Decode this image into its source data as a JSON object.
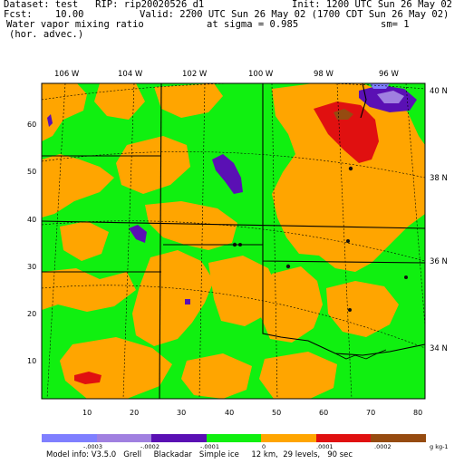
{
  "header": {
    "line1_left": "Dataset: test   RIP: rip20020526_d1",
    "line1_right": "Init: 1200 UTC Sun 26 May 02",
    "line2_left": "Fcst:    10.00",
    "line2_right": "Valid: 2200 UTC Sun 26 May 02 (1700 CDT Sun 26 May 02)",
    "line3_left": "Water vapor mixing ratio",
    "line3_mid": "at sigma = 0.985",
    "line3_right": "sm= 1",
    "line4_left": "(hor. advec.)"
  },
  "map": {
    "lon_labels": [
      "106 W",
      "104 W",
      "102 W",
      "100 W",
      "98 W",
      "96 W"
    ],
    "lat_labels": [
      "40 N",
      "38 N",
      "36 N",
      "34 N"
    ],
    "y_ticks": [
      "60",
      "50",
      "40",
      "30",
      "20",
      "10"
    ],
    "x_ticks": [
      "10",
      "20",
      "30",
      "40",
      "50",
      "60",
      "70",
      "80"
    ]
  },
  "legend": {
    "colors": [
      "#7f7fff",
      "#a080e0",
      "#5a10b4",
      "#10f010",
      "#ffa500",
      "#e01010",
      "#964b10"
    ],
    "labels": [
      "-.0003",
      "-.0002",
      "-.0001",
      "0",
      ".0001",
      ".0002"
    ],
    "units": "g kg-1"
  },
  "footer": "Model info: V3.5.0   Grell     Blackadar   Simple ice     12 km,  29 levels,   90 sec"
}
